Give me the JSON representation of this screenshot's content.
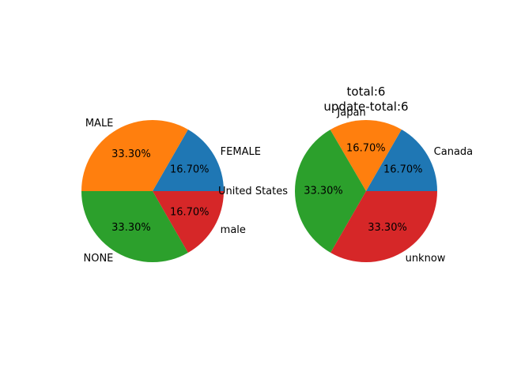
{
  "chart_data": [
    {
      "type": "pie",
      "title_lines": [],
      "labels": [
        "FEMALE",
        "MALE",
        "NONE",
        "male"
      ],
      "values": [
        16.7,
        33.3,
        33.3,
        16.7
      ],
      "pct_labels": [
        "16.70%",
        "33.30%",
        "33.30%",
        "16.70%"
      ],
      "colors": [
        "#1f77b4",
        "#ff7f0e",
        "#2ca02c",
        "#d62728"
      ],
      "start_angle": 0,
      "direction": "counterclockwise"
    },
    {
      "type": "pie",
      "title_lines": [
        "total:6",
        "update-total:6"
      ],
      "labels": [
        "Canada",
        "Japan",
        "United States",
        "unknow"
      ],
      "values": [
        16.7,
        16.7,
        33.3,
        33.3
      ],
      "pct_labels": [
        "16.70%",
        "16.70%",
        "33.30%",
        "33.30%"
      ],
      "colors": [
        "#1f77b4",
        "#ff7f0e",
        "#2ca02c",
        "#d62728"
      ],
      "start_angle": 0,
      "direction": "counterclockwise"
    }
  ]
}
